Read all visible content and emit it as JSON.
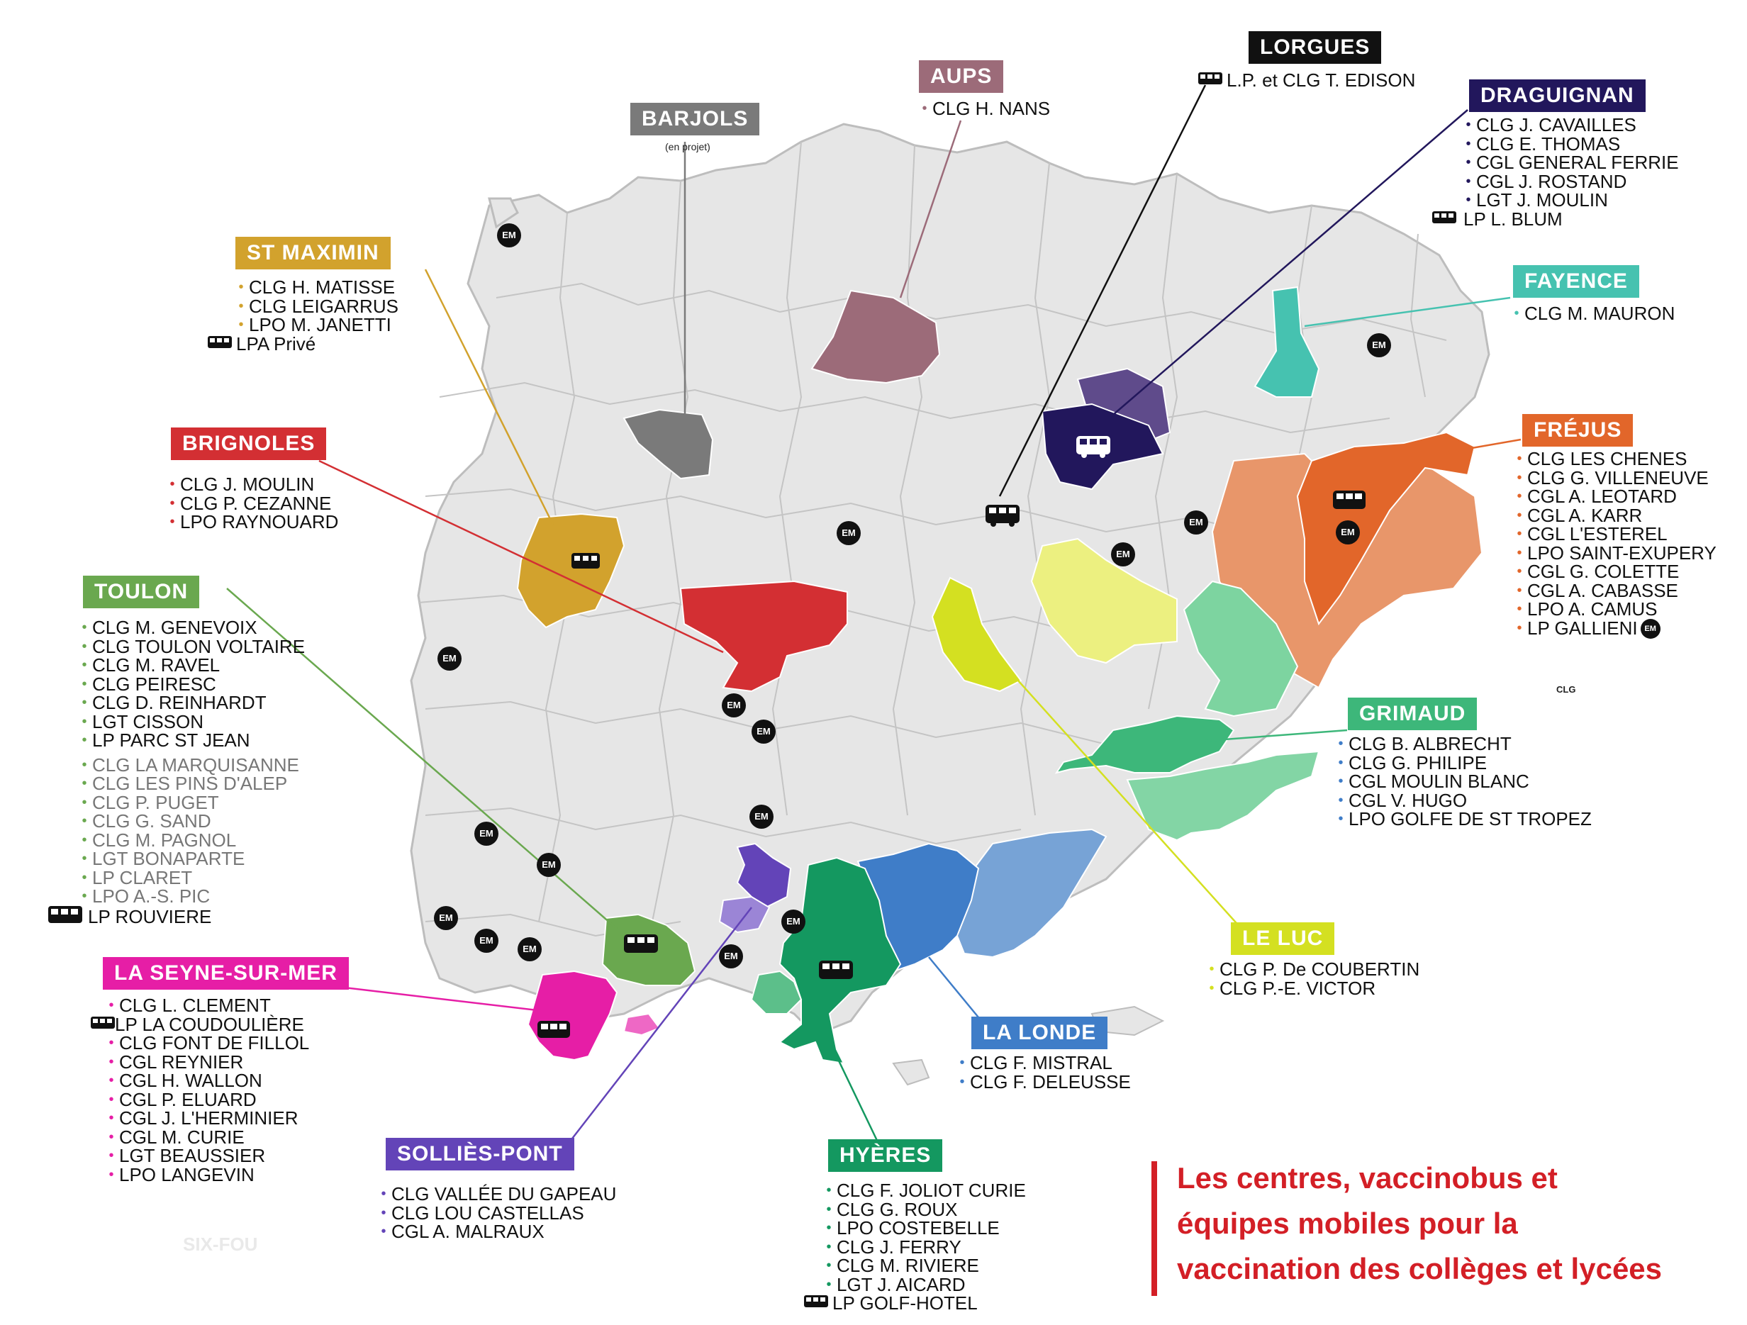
{
  "title": [
    "Les centres, vaccinobus et",
    "équipes mobiles pour la",
    "vaccination des collèges et lycées"
  ],
  "colors": {
    "base_commune": "#e6e6e6",
    "barjols": "#7a7a7a",
    "aups": "#9c6b79",
    "lorgues": "#111111",
    "draguignan": "#22175c",
    "fayence": "#46c2b0",
    "frejus": "#e2662a",
    "st_maximin": "#d2a22d",
    "brignoles": "#d32f33",
    "toulon": "#6aa84f",
    "grimaud": "#3db77a",
    "le_luc": "#d4e021",
    "la_seyne": "#e61ea6",
    "sollies_pont": "#6344b8",
    "hyeres": "#149860",
    "la_londe": "#3f7dc8",
    "title_red": "#d31f26"
  },
  "centers": {
    "lorgues": {
      "name": "LORGUES",
      "items": [
        "L.P. et CLG T. EDISON"
      ]
    },
    "aups": {
      "name": "AUPS",
      "items": [
        "CLG H. NANS"
      ]
    },
    "barjols": {
      "name": "BARJOLS",
      "note": "(en projet)"
    },
    "draguignan": {
      "name": "DRAGUIGNAN",
      "items": [
        "CLG J. CAVAILLES",
        "CLG E. THOMAS",
        "CGL GENERAL FERRIE",
        "CGL J. ROSTAND",
        "LGT J. MOULIN",
        "LP L. BLUM"
      ]
    },
    "st_maximin": {
      "name": "ST MAXIMIN",
      "items": [
        "CLG H. MATISSE",
        "CLG LEIGARRUS",
        "LPO M. JANETTI",
        "LPA Privé"
      ]
    },
    "fayence": {
      "name": "FAYENCE",
      "items": [
        "CLG M. MAURON"
      ]
    },
    "brignoles": {
      "name": "BRIGNOLES",
      "items": [
        "CLG J. MOULIN",
        "CLG P. CEZANNE",
        "LPO RAYNOUARD"
      ]
    },
    "frejus": {
      "name": "FRÉJUS",
      "items": [
        "CLG LES CHENES",
        "CLG G. VILLENEUVE",
        "CGL A. LEOTARD",
        "CGL A. KARR",
        "CGL L'ESTEREL",
        "LPO SAINT-EXUPERY",
        "CGL G. COLETTE",
        "CGL A. CABASSE",
        "LPO A. CAMUS",
        "LP GALLIENI"
      ]
    },
    "toulon": {
      "name": "TOULON",
      "items": [
        "CLG M. GENEVOIX",
        "CLG TOULON VOLTAIRE",
        "CLG M. RAVEL",
        "CLG PEIRESC",
        "CLG D. REINHARDT",
        "LGT CISSON",
        "LP PARC ST JEAN"
      ],
      "items_em": [
        "CLG LA MARQUISANNE",
        "CLG LES PINS D'ALEP",
        "CLG P. PUGET",
        "CLG G. SAND",
        "CLG M. PAGNOL",
        "LGT BONAPARTE",
        "LP CLARET",
        "LPO A.-S. PIC"
      ],
      "items_bus": [
        "LP  ROUVIERE"
      ]
    },
    "grimaud": {
      "name": "GRIMAUD",
      "items": [
        "CLG B. ALBRECHT",
        "CLG G. PHILIPE",
        "CGL MOULIN BLANC",
        "CGL V. HUGO",
        "LPO GOLFE DE ST TROPEZ"
      ]
    },
    "la_seyne": {
      "name": "LA SEYNE-SUR-MER",
      "items": [
        "CLG L. CLEMENT",
        "LP LA COUDOULIÈRE",
        "CLG FONT DE FILLOL",
        "CGL REYNIER",
        "CGL H. WALLON",
        "CGL P. ELUARD",
        "CGL J. L'HERMINIER",
        "CGL M. CURIE",
        "LGT BEAUSSIER",
        "LPO LANGEVIN"
      ]
    },
    "le_luc": {
      "name": "LE LUC",
      "items": [
        "CLG P. De COUBERTIN",
        "CLG P.-E. VICTOR"
      ]
    },
    "la_londe": {
      "name": "LA LONDE",
      "items": [
        "CLG F. MISTRAL",
        "CLG F. DELEUSSE"
      ]
    },
    "sollies_pont": {
      "name": "SOLLIÈS-PONT",
      "items": [
        "CLG VALLÉE DU GAPEAU",
        "CLG LOU CASTELLAS",
        "CGL A. MALRAUX"
      ]
    },
    "hyeres": {
      "name": "HYÈRES",
      "items": [
        "CLG F. JOLIOT CURIE",
        "CLG G. ROUX",
        "LPO COSTEBELLE",
        "CLG J. FERRY",
        "CLG M. RIVIERE",
        "LGT J. AICARD",
        "LP GOLF-HOTEL"
      ]
    }
  },
  "em_marker": "EM",
  "clg_tiny": "CLG",
  "six_fours_ghost": "SIX-FOU"
}
